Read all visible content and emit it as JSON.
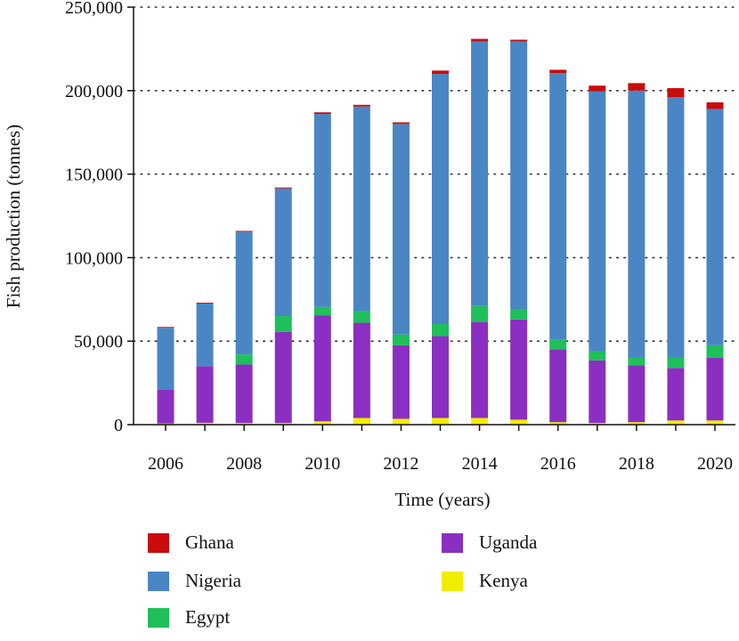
{
  "chart_data": {
    "type": "bar",
    "stacked": true,
    "categories": [
      "2006",
      "2007",
      "2008",
      "2009",
      "2010",
      "2011",
      "2012",
      "2013",
      "2014",
      "2015",
      "2016",
      "2017",
      "2018",
      "2019",
      "2020"
    ],
    "series": [
      {
        "name": "Kenya",
        "color": "#f2ec00",
        "values": [
          700,
          1100,
          1000,
          1000,
          2000,
          4000,
          3500,
          4000,
          4000,
          3000,
          1500,
          1000,
          1500,
          2500,
          2500
        ]
      },
      {
        "name": "Uganda",
        "color": "#8a2fc2",
        "values": [
          20300,
          33900,
          35000,
          54500,
          63500,
          57000,
          44000,
          49000,
          57500,
          60000,
          43500,
          37500,
          34000,
          31500,
          37500
        ]
      },
      {
        "name": "Egypt",
        "color": "#1fbf5a",
        "values": [
          0,
          0,
          6000,
          9500,
          5000,
          7000,
          6500,
          7500,
          9500,
          6000,
          6000,
          5500,
          4500,
          6000,
          7500
        ]
      },
      {
        "name": "Nigeria",
        "color": "#4a86c4",
        "values": [
          37000,
          37500,
          73500,
          76500,
          115500,
          122500,
          126000,
          149500,
          158500,
          160500,
          159500,
          155500,
          160000,
          156000,
          141500
        ]
      },
      {
        "name": "Ghana",
        "color": "#c90d0d",
        "values": [
          500,
          500,
          500,
          500,
          1000,
          1000,
          1000,
          2000,
          1500,
          1000,
          2000,
          3500,
          4500,
          5500,
          4000
        ]
      }
    ],
    "xlabel": "Time (years)",
    "ylabel": "Fish production (tonnes)",
    "ylim": [
      0,
      250000
    ],
    "yticks": [
      "0",
      "50,000",
      "100,000",
      "150,000",
      "200,000",
      "250,000"
    ],
    "xticks": [
      "2006",
      "2008",
      "2010",
      "2012",
      "2014",
      "2016",
      "2018",
      "2020"
    ],
    "grid": "horizontal dotted",
    "legend_position": "bottom",
    "legend_order": [
      "Ghana",
      "Nigeria",
      "Egypt",
      "Uganda",
      "Kenya"
    ]
  }
}
